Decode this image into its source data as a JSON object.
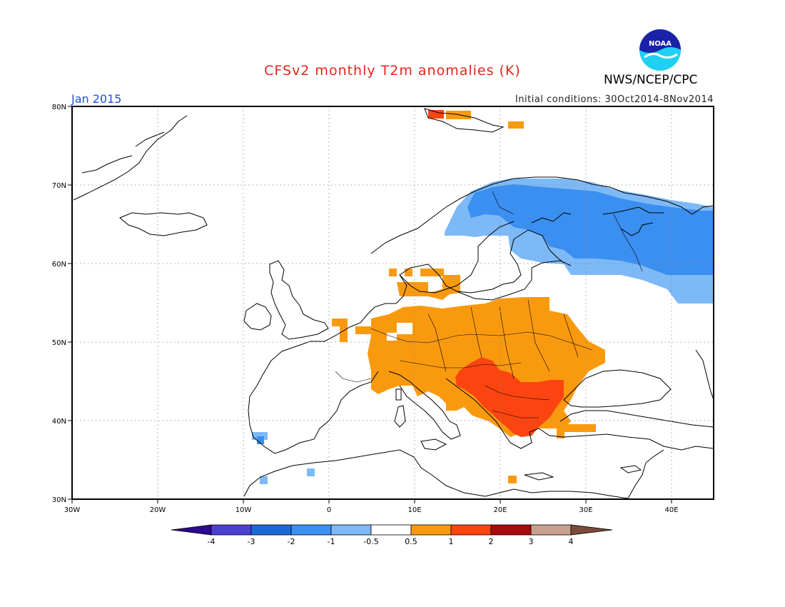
{
  "title": "CFSv2 monthly T2m anomalies (K)",
  "agency": "NWS/NCEP/CPC",
  "logo_text": "NOAA",
  "month_label": "Jan 2015",
  "initial_conditions": "Initial conditions: 30Oct2014-8Nov2014",
  "lat_labels": [
    "80N",
    "70N",
    "60N",
    "50N",
    "40N",
    "30N"
  ],
  "lon_labels": [
    "30W",
    "20W",
    "10W",
    "0",
    "10E",
    "20E",
    "30E",
    "40E"
  ],
  "colorbar": {
    "colors": [
      "#2a0a8c",
      "#4b3fd0",
      "#1d6ad6",
      "#3b8ff0",
      "#7db9f6",
      "#ffffff",
      "#f99a0e",
      "#fb4410",
      "#a70b0b",
      "#c8a08e",
      "#7a4a3a"
    ],
    "labels": [
      "-4",
      "-3",
      "-2",
      "-1",
      "-0.5",
      "0.5",
      "1",
      "2",
      "3",
      "4"
    ]
  },
  "colors": {
    "warm_1": "#f99a0e",
    "warm_2": "#fb4410",
    "cold_1": "#7db9f6",
    "cold_2": "#3b8ff0"
  }
}
